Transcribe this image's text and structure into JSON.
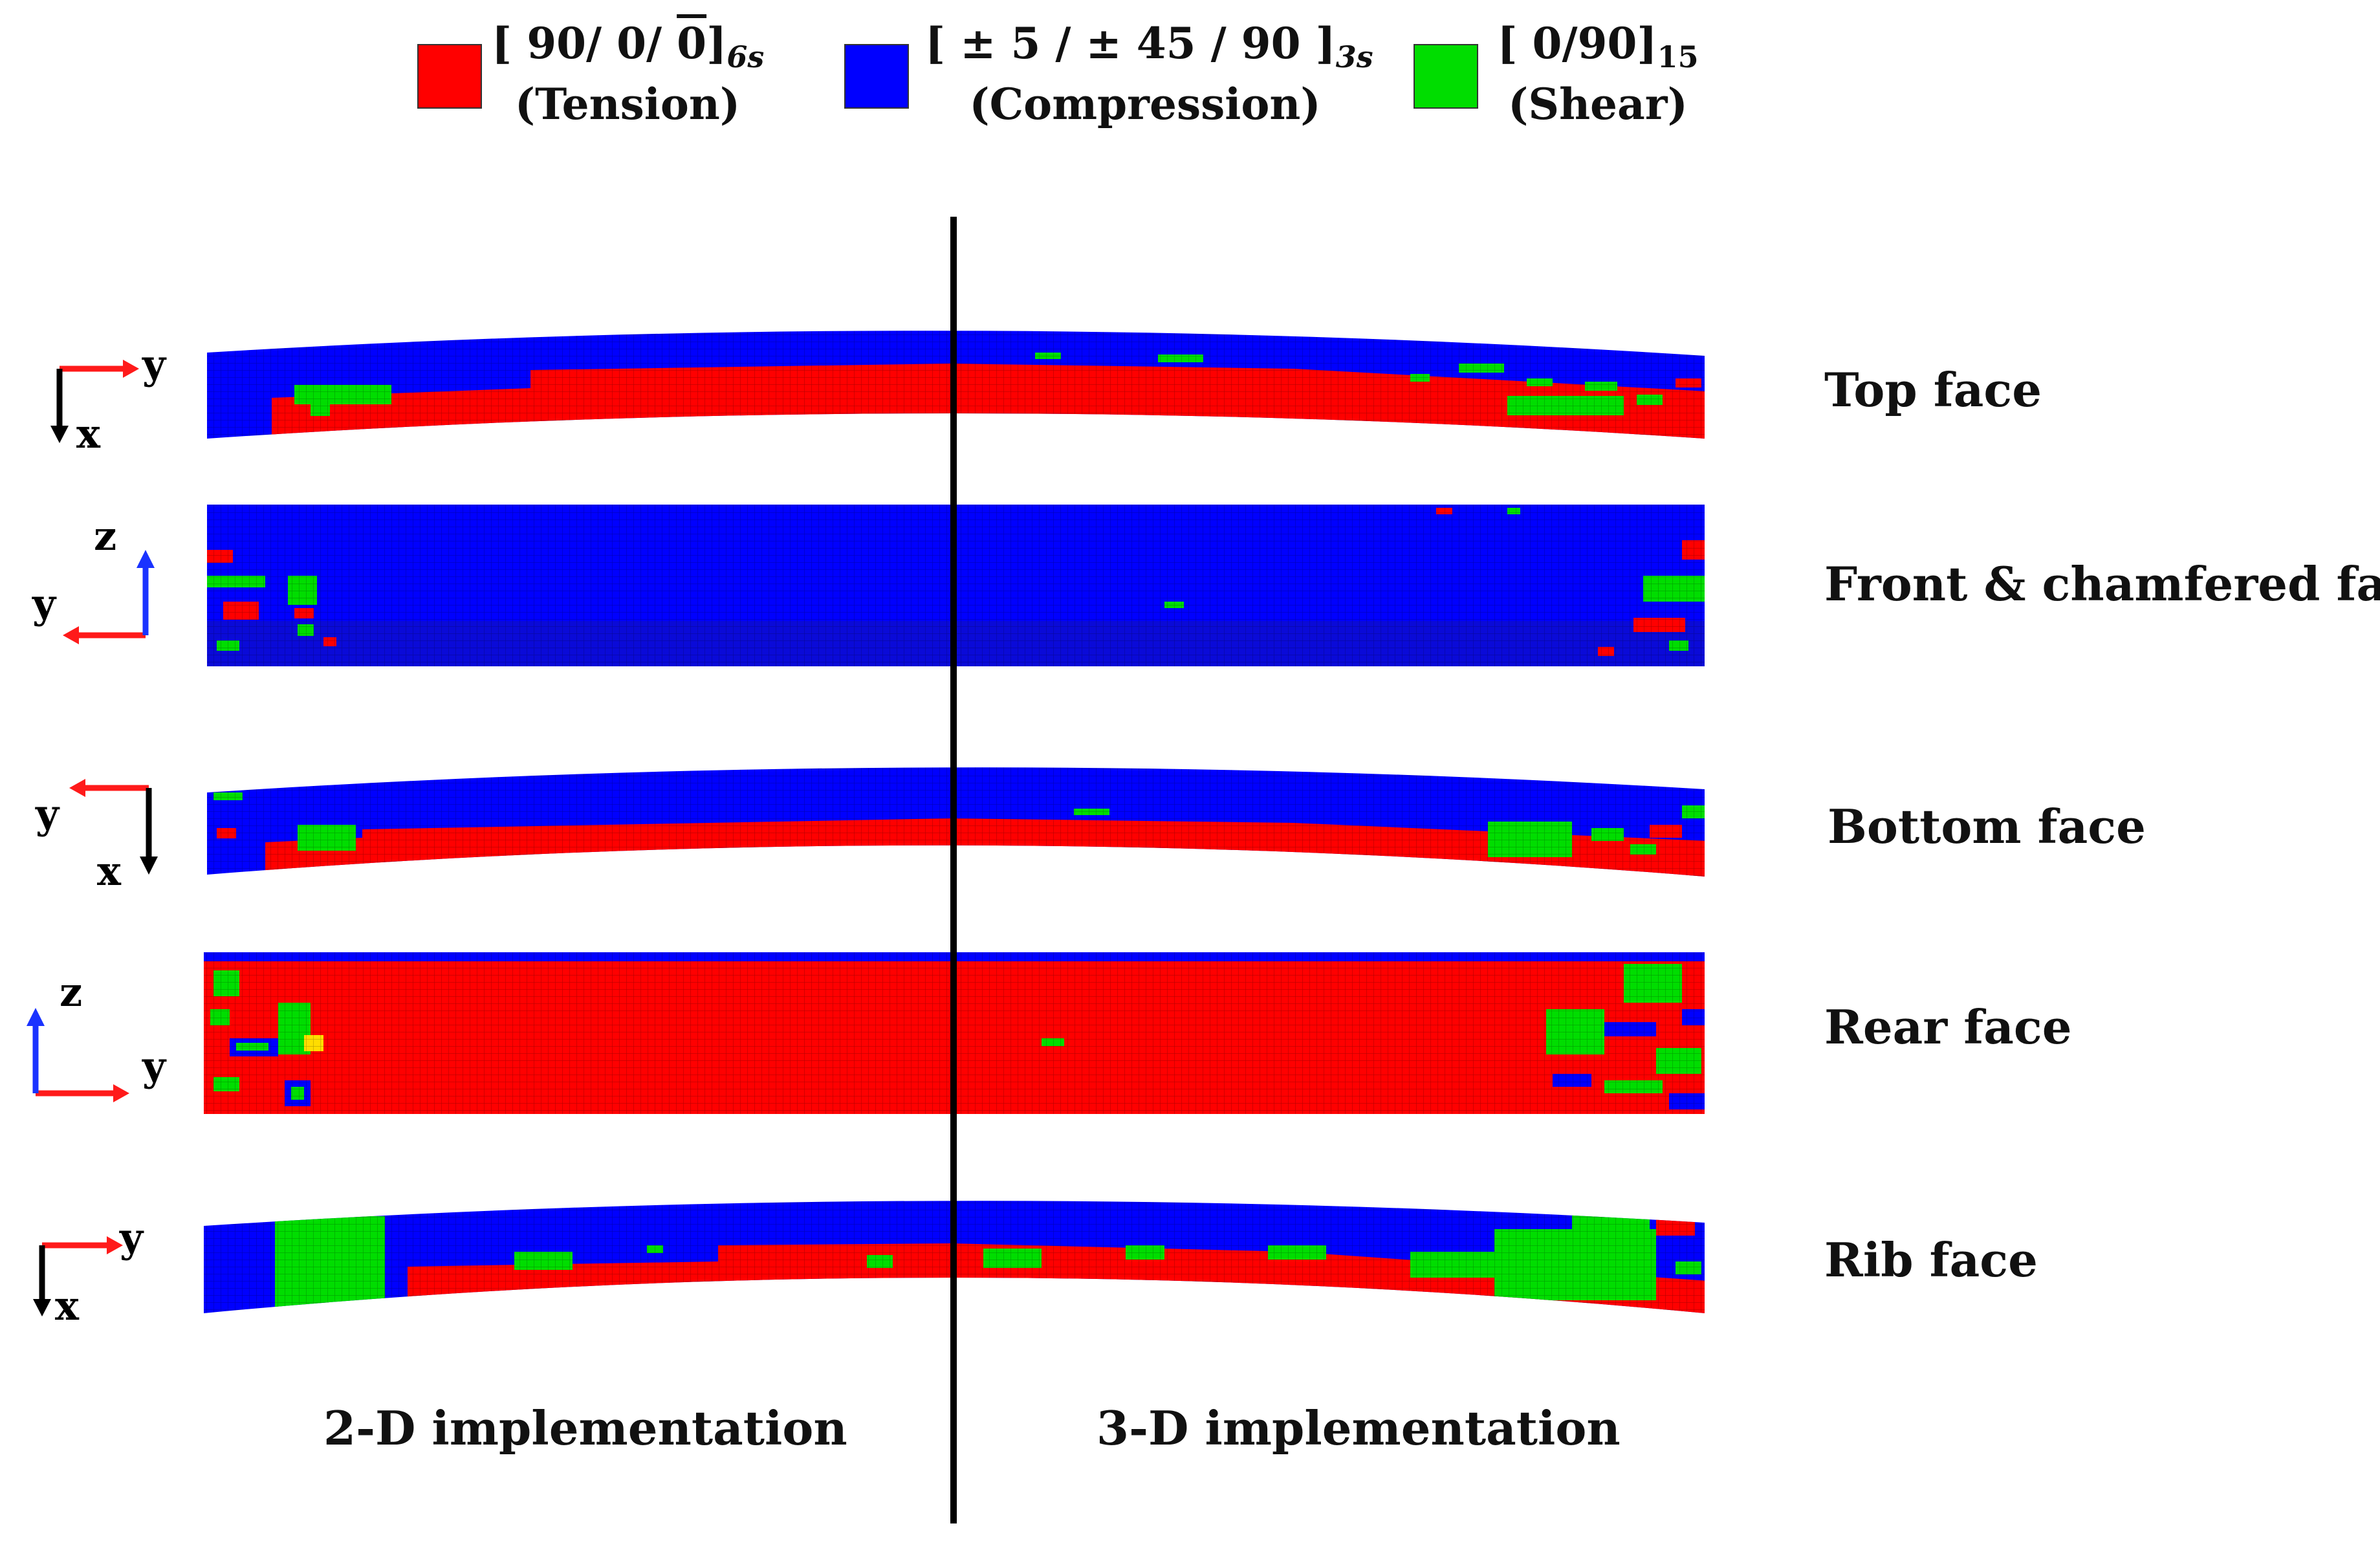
{
  "legend": [
    {
      "name": "tension",
      "layup": "[ 90/ 0/ 0]",
      "layup_sub": "6s",
      "label": "(Tension)",
      "color": "#ff0000"
    },
    {
      "name": "compression",
      "layup": "[ ± 5 / ± 45 / 90 ]",
      "layup_sub": "3s",
      "label": "(Compression)",
      "color": "#0000ff"
    },
    {
      "name": "shear",
      "layup": "[ 0/90]",
      "layup_sub": "15",
      "label": "(Shear)",
      "color": "#00dd00"
    }
  ],
  "faces": [
    {
      "label": "Top face",
      "axes": {
        "h": "y",
        "v": "x"
      }
    },
    {
      "label": "Front & chamfered face",
      "axes": {
        "h": "y",
        "v": "z"
      }
    },
    {
      "label": "Bottom face",
      "axes": {
        "h": "y",
        "v": "x"
      }
    },
    {
      "label": "Rear face",
      "axes": {
        "h": "y",
        "v": "z"
      }
    },
    {
      "label": "Rib face",
      "axes": {
        "h": "y",
        "v": "x"
      }
    }
  ],
  "bottom_labels": {
    "left": "2-D implementation",
    "right": "3-D implementation"
  },
  "colors": {
    "tension": "#ff0000",
    "compression": "#0000ff",
    "shear": "#00dd00",
    "axis_red": "#ff1a1a",
    "axis_blue": "#1a33ff",
    "axis_black": "#000000"
  }
}
